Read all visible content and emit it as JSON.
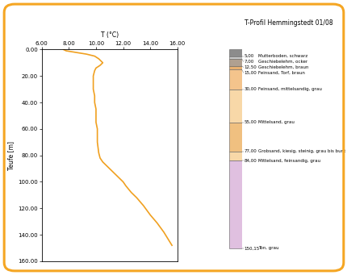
{
  "chart_data": {
    "type": "line",
    "title": "T-Profil Hemmingstedt 01/08",
    "x_label": "T (°C)",
    "y_label": "Teufe [m]",
    "series": [
      {
        "name": "T-Profil",
        "color": "#f0a020",
        "x": [
          7.6,
          7.8,
          8.4,
          9.3,
          9.9,
          10.2,
          10.5,
          10.3,
          10.0,
          9.9,
          9.8,
          9.8,
          9.8,
          9.9,
          9.9,
          10.0,
          10.0,
          10.0,
          10.1,
          10.1,
          10.2,
          10.3,
          10.5,
          10.8,
          11.1,
          11.5,
          11.8,
          12.0,
          12.2,
          12.6,
          13.0,
          13.5,
          14.0,
          14.5,
          15.0,
          15.3,
          15.6
        ],
        "y": [
          0,
          1,
          2,
          3.5,
          5,
          7,
          10,
          12,
          14,
          16,
          20,
          25,
          30,
          35,
          40,
          45,
          50,
          55,
          60,
          70,
          78,
          82,
          85,
          88,
          91,
          95,
          98,
          100,
          103,
          108,
          112,
          118,
          125,
          131,
          138,
          143,
          148
        ]
      }
    ],
    "xlim": [
      6,
      16
    ],
    "xticks": [
      {
        "value": 6,
        "label": "6.00"
      },
      {
        "value": 8,
        "label": "8.00"
      },
      {
        "value": 10,
        "label": "10.00"
      },
      {
        "value": 12,
        "label": "12.00"
      },
      {
        "value": 14,
        "label": "14.00"
      },
      {
        "value": 16,
        "label": "16.00"
      }
    ],
    "ylim": [
      0,
      160
    ],
    "yticks": [
      {
        "value": 0,
        "label": "0.00"
      },
      {
        "value": 20,
        "label": "20.00"
      },
      {
        "value": 40,
        "label": "40.00"
      },
      {
        "value": 60,
        "label": "60.00"
      },
      {
        "value": 80,
        "label": "80.00"
      },
      {
        "value": 100,
        "label": "100.00"
      },
      {
        "value": 120,
        "label": "120.00"
      },
      {
        "value": 140,
        "label": "140.00"
      },
      {
        "value": 160,
        "label": "160.00"
      }
    ],
    "grid": false,
    "lithology": [
      {
        "name": "Mutterboden, schwarz",
        "base": {
          "value": 5.0,
          "label": "5,00"
        },
        "color": "#8c8c8c"
      },
      {
        "name": "Geschiebelehm, ocker",
        "base": {
          "value": 7.0,
          "label": "7,00"
        },
        "color": "#c8c8c8"
      },
      {
        "name": "Geschiebelehm, braun",
        "base": {
          "value": 12.5,
          "label": "12,50"
        },
        "color": "#b0a090"
      },
      {
        "name": "Feinsand, Torf, braun",
        "base": {
          "value": 15.0,
          "label": "15,00"
        },
        "color": "#e8b070"
      },
      {
        "name": "Feinsand, mittelsandig, grau",
        "base": {
          "value": 30.0,
          "label": "30,00"
        },
        "color": "#f4c48c"
      },
      {
        "name": "Mittelsand, grau",
        "base": {
          "value": 55.0,
          "label": "55,00"
        },
        "color": "#f8d8a8"
      },
      {
        "name": "Grobsand, kiesig, steinig, grau bis bunt",
        "base": {
          "value": 77.0,
          "label": "77,00"
        },
        "color": "#f0c080"
      },
      {
        "name": "Mittelsand, feinsandig, grau",
        "base": {
          "value": 84.0,
          "label": "84,00"
        },
        "color": "#f8d8a8"
      },
      {
        "name": "Ton, grau",
        "base": {
          "value": 150.15,
          "label": "150,15"
        },
        "color": "#e0c0e0"
      }
    ]
  }
}
